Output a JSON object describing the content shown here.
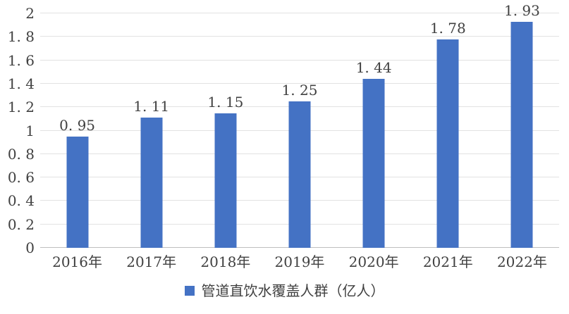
{
  "chart_data": {
    "type": "bar",
    "title": "",
    "xlabel": "",
    "ylabel": "",
    "categories": [
      "2016年",
      "2017年",
      "2018年",
      "2019年",
      "2020年",
      "2021年",
      "2022年"
    ],
    "values": [
      0.95,
      1.11,
      1.15,
      1.25,
      1.44,
      1.78,
      1.93
    ],
    "data_labels": [
      "0. 95",
      "1. 11",
      "1. 15",
      "1. 25",
      "1. 44",
      "1. 78",
      "1. 93"
    ],
    "ylim": [
      0,
      2
    ],
    "ytick_step": 0.2,
    "ytick_labels": [
      "0",
      "0. 2",
      "0. 4",
      "0. 6",
      "0. 8",
      "1",
      "1. 2",
      "1. 4",
      "1. 6",
      "1. 8",
      "2"
    ],
    "grid": true,
    "legend_position": "bottom",
    "legend": {
      "label": "管道直饮水覆盖人群（亿人）"
    }
  },
  "colors": {
    "bar": "#4472C4",
    "legend_marker": "#4472C4",
    "grid_line": "#E2E2E2",
    "axis_line": "#BFBFBF",
    "text": "#404040",
    "background": "#FFFFFF"
  }
}
